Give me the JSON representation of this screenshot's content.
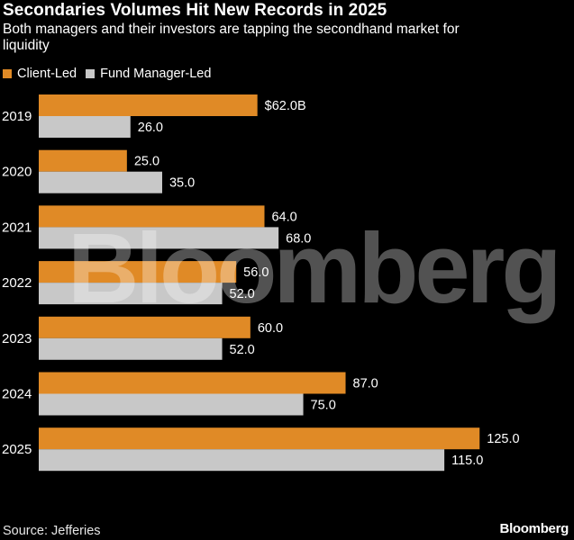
{
  "header": {
    "title": "Secondaries Volumes Hit New Records in 2025",
    "subtitle": "Both managers and their investors are tapping the secondhand market for liquidity"
  },
  "legend": {
    "client_led": "Client-Led",
    "fund_manager_led": "Fund Manager-Led"
  },
  "footer": {
    "source": "Source: Jefferies",
    "brand": "Bloomberg"
  },
  "watermark": "Bloomberg",
  "colors": {
    "client_led": "#e08a26",
    "fund_manager_led": "#c8c8c8"
  },
  "chart_data": {
    "type": "bar",
    "orientation": "horizontal",
    "categories": [
      "2019",
      "2020",
      "2021",
      "2022",
      "2023",
      "2024",
      "2025"
    ],
    "series": [
      {
        "name": "Client-Led",
        "values": [
          62.0,
          25.0,
          64.0,
          56.0,
          60.0,
          87.0,
          125.0
        ],
        "labels": [
          "$62.0B",
          "25.0",
          "64.0",
          "56.0",
          "60.0",
          "87.0",
          "125.0"
        ]
      },
      {
        "name": "Fund Manager-Led",
        "values": [
          26.0,
          35.0,
          68.0,
          52.0,
          52.0,
          75.0,
          115.0
        ],
        "labels": [
          "26.0",
          "35.0",
          "68.0",
          "52.0",
          "52.0",
          "75.0",
          "115.0"
        ]
      }
    ],
    "xlim": [
      0,
      125
    ],
    "grid": false,
    "legend_position": "top-left"
  }
}
